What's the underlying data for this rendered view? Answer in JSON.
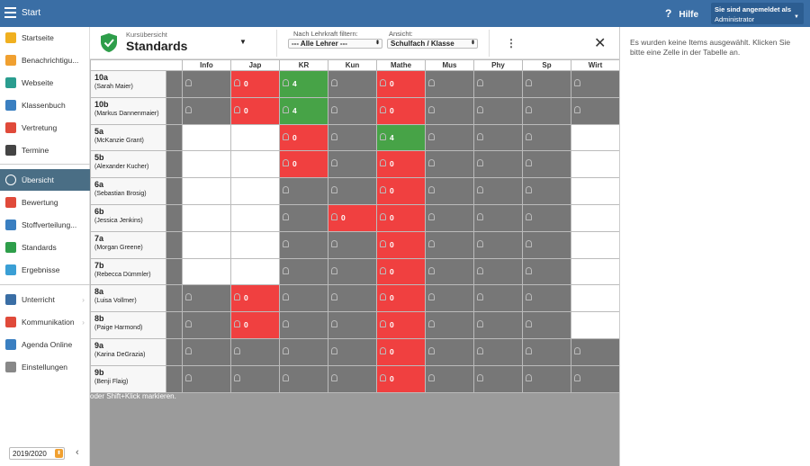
{
  "topbar": {
    "app_title": "Start",
    "help_label": "Hilfe",
    "login_line1": "Sie sind angemeldet als",
    "login_line2": "Administrator"
  },
  "sidebar": {
    "items": [
      {
        "label": "Startseite",
        "icon": "star-icon",
        "color": "#f0b020"
      },
      {
        "label": "Benachrichtigu...",
        "icon": "envelope-icon",
        "color": "#f0a030"
      },
      {
        "label": "Webseite",
        "icon": "house-icon",
        "color": "#2a9d8f"
      },
      {
        "label": "Klassenbuch",
        "icon": "book-icon",
        "color": "#3a7fc1"
      },
      {
        "label": "Vertretung",
        "icon": "person-icon",
        "color": "#e04a3a"
      },
      {
        "label": "Termine",
        "icon": "calendar-icon",
        "color": "#444"
      },
      {
        "label": "Übersicht",
        "icon": "check-circle-icon",
        "color": "#ffffff"
      },
      {
        "label": "Bewertung",
        "icon": "rating-icon",
        "color": "#e04a3a"
      },
      {
        "label": "Stoffverteilung...",
        "icon": "briefcase-icon",
        "color": "#3a7fc1"
      },
      {
        "label": "Standards",
        "icon": "shield-icon",
        "color": "#2e9e4a"
      },
      {
        "label": "Ergebnisse",
        "icon": "bar-chart-icon",
        "color": "#3a9fd5"
      },
      {
        "label": "Unterricht",
        "icon": "board-icon",
        "color": "#3a6ea5"
      },
      {
        "label": "Kommunikation",
        "icon": "chat-icon",
        "color": "#e04a3a"
      },
      {
        "label": "Agenda Online",
        "icon": "pen-icon",
        "color": "#3a7fc1"
      },
      {
        "label": "Einstellungen",
        "icon": "gear-icon",
        "color": "#888"
      }
    ],
    "year": "2019/2020"
  },
  "header": {
    "subtitle": "Kursübersicht",
    "title": "Standards",
    "filter_label": "Nach Lehrkraft filtern:",
    "filter_value": "--- Alle Lehrer ---",
    "view_label": "Ansicht:",
    "view_value": "Schulfach / Klasse"
  },
  "table": {
    "columns": [
      "Info",
      "Jap",
      "KR",
      "Kun",
      "Mathe",
      "Mus",
      "Phy",
      "Sp",
      "Wirt"
    ],
    "rows": [
      {
        "cls": "10a",
        "teacher": "(Sarah Maier)",
        "cells": [
          [
            "g",
            ""
          ],
          [
            "r",
            "0"
          ],
          [
            "gr",
            "4"
          ],
          [
            "g",
            ""
          ],
          [
            "r",
            "0"
          ],
          [
            "g",
            ""
          ],
          [
            "g",
            ""
          ],
          [
            "g",
            ""
          ],
          [
            "g",
            ""
          ]
        ]
      },
      {
        "cls": "10b",
        "teacher": "(Markus Dannenmaier)",
        "cells": [
          [
            "g",
            ""
          ],
          [
            "r",
            "0"
          ],
          [
            "gr",
            "4"
          ],
          [
            "g",
            ""
          ],
          [
            "r",
            "0"
          ],
          [
            "g",
            ""
          ],
          [
            "g",
            ""
          ],
          [
            "g",
            ""
          ],
          [
            "g",
            ""
          ]
        ]
      },
      {
        "cls": "5a",
        "teacher": "(McKanzie Grant)",
        "cells": [
          [
            "w",
            ""
          ],
          [
            "w",
            ""
          ],
          [
            "r",
            "0"
          ],
          [
            "g",
            ""
          ],
          [
            "gr",
            "4"
          ],
          [
            "g",
            ""
          ],
          [
            "g",
            ""
          ],
          [
            "g",
            ""
          ],
          [
            "w",
            ""
          ]
        ]
      },
      {
        "cls": "5b",
        "teacher": "(Alexander Kucher)",
        "cells": [
          [
            "w",
            ""
          ],
          [
            "w",
            ""
          ],
          [
            "r",
            "0"
          ],
          [
            "g",
            ""
          ],
          [
            "r",
            "0"
          ],
          [
            "g",
            ""
          ],
          [
            "g",
            ""
          ],
          [
            "g",
            ""
          ],
          [
            "w",
            ""
          ]
        ]
      },
      {
        "cls": "6a",
        "teacher": "(Sebastian Brosig)",
        "cells": [
          [
            "w",
            ""
          ],
          [
            "w",
            ""
          ],
          [
            "g",
            ""
          ],
          [
            "g",
            ""
          ],
          [
            "r",
            "0"
          ],
          [
            "g",
            ""
          ],
          [
            "g",
            ""
          ],
          [
            "g",
            ""
          ],
          [
            "w",
            ""
          ]
        ]
      },
      {
        "cls": "6b",
        "teacher": "(Jessica Jenkins)",
        "cells": [
          [
            "w",
            ""
          ],
          [
            "w",
            ""
          ],
          [
            "g",
            ""
          ],
          [
            "r",
            "0"
          ],
          [
            "r",
            "0"
          ],
          [
            "g",
            ""
          ],
          [
            "g",
            ""
          ],
          [
            "g",
            ""
          ],
          [
            "w",
            ""
          ]
        ]
      },
      {
        "cls": "7a",
        "teacher": "(Morgan Greene)",
        "cells": [
          [
            "w",
            ""
          ],
          [
            "w",
            ""
          ],
          [
            "g",
            ""
          ],
          [
            "g",
            ""
          ],
          [
            "r",
            "0"
          ],
          [
            "g",
            ""
          ],
          [
            "g",
            ""
          ],
          [
            "g",
            ""
          ],
          [
            "w",
            ""
          ]
        ]
      },
      {
        "cls": "7b",
        "teacher": "(Rebecca Dümmler)",
        "cells": [
          [
            "w",
            ""
          ],
          [
            "w",
            ""
          ],
          [
            "g",
            ""
          ],
          [
            "g",
            ""
          ],
          [
            "r",
            "0"
          ],
          [
            "g",
            ""
          ],
          [
            "g",
            ""
          ],
          [
            "g",
            ""
          ],
          [
            "w",
            ""
          ]
        ]
      },
      {
        "cls": "8a",
        "teacher": "(Luisa Vollmer)",
        "cells": [
          [
            "g",
            ""
          ],
          [
            "r",
            "0"
          ],
          [
            "g",
            ""
          ],
          [
            "g",
            ""
          ],
          [
            "r",
            "0"
          ],
          [
            "g",
            ""
          ],
          [
            "g",
            ""
          ],
          [
            "g",
            ""
          ],
          [
            "w",
            ""
          ]
        ]
      },
      {
        "cls": "8b",
        "teacher": "(Paige Harmond)",
        "cells": [
          [
            "g",
            ""
          ],
          [
            "r",
            "0"
          ],
          [
            "g",
            ""
          ],
          [
            "g",
            ""
          ],
          [
            "r",
            "0"
          ],
          [
            "g",
            ""
          ],
          [
            "g",
            ""
          ],
          [
            "g",
            ""
          ],
          [
            "w",
            ""
          ]
        ]
      },
      {
        "cls": "9a",
        "teacher": "(Karina DeGrazia)",
        "cells": [
          [
            "g",
            ""
          ],
          [
            "g",
            ""
          ],
          [
            "g",
            ""
          ],
          [
            "g",
            ""
          ],
          [
            "r",
            "0"
          ],
          [
            "g",
            ""
          ],
          [
            "g",
            ""
          ],
          [
            "g",
            ""
          ],
          [
            "g",
            ""
          ]
        ]
      },
      {
        "cls": "9b",
        "teacher": "(Benji Flaig)",
        "cells": [
          [
            "g",
            ""
          ],
          [
            "g",
            ""
          ],
          [
            "g",
            ""
          ],
          [
            "g",
            ""
          ],
          [
            "r",
            "0"
          ],
          [
            "g",
            ""
          ],
          [
            "g",
            ""
          ],
          [
            "g",
            ""
          ],
          [
            "g",
            ""
          ]
        ]
      }
    ]
  },
  "footer_hint": "oder Shift+Klick markieren.",
  "right_panel": {
    "message": "Es wurden keine Items ausgewählt. Klicken Sie bitte eine Zelle in der Tabelle an."
  }
}
